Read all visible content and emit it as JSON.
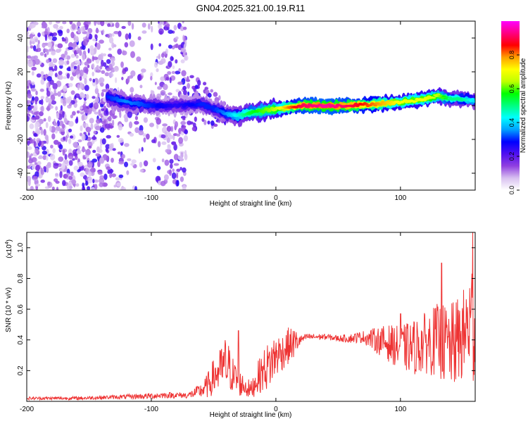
{
  "title": "GN04.2025.321.00.19.R11",
  "chart_data": [
    {
      "type": "heatmap",
      "xlabel": "Height of straight line (km)",
      "ylabel": "Frequency (Hz)",
      "xlim": [
        -200,
        160
      ],
      "ylim": [
        -50,
        50
      ],
      "xticks": [
        -200,
        -100,
        0,
        100
      ],
      "yticks": [
        -40,
        -20,
        0,
        20,
        40
      ],
      "xtick_labels": [
        "-200",
        "-100",
        "0",
        "100"
      ],
      "ytick_labels": [
        "-40",
        "-20",
        "0",
        "20",
        "40"
      ],
      "colorbar": {
        "label": "Normalized spectral amplitude",
        "range": [
          0,
          1
        ],
        "ticks": [
          0.0,
          0.2,
          0.4,
          0.6,
          0.8
        ],
        "tick_labels": [
          "0.0",
          "0.2",
          "0.4",
          "0.6",
          "0.8"
        ],
        "colors": [
          "#ffffff",
          "#d8c0f0",
          "#9040e0",
          "#5010f0",
          "#0000ff",
          "#00a0ff",
          "#00ffff",
          "#00ff80",
          "#00ff00",
          "#c0ff00",
          "#ffff00",
          "#ffa000",
          "#ff0000",
          "#ff0080",
          "#ff00ff"
        ]
      },
      "ridge": {
        "x": [
          -135,
          -120,
          -100,
          -80,
          -60,
          -50,
          -40,
          -30,
          -20,
          -10,
          0,
          10,
          20,
          40,
          60,
          80,
          100,
          120,
          130,
          140,
          150,
          160
        ],
        "freq": [
          5,
          2,
          0,
          0,
          1,
          -2,
          -5,
          -6,
          -4,
          -3,
          -2,
          -1,
          0,
          0,
          0,
          1,
          2,
          4,
          6,
          4,
          4,
          3
        ],
        "amp": [
          0.3,
          0.35,
          0.3,
          0.25,
          0.3,
          0.3,
          0.35,
          0.45,
          0.55,
          0.6,
          0.65,
          0.8,
          0.9,
          0.95,
          0.9,
          0.8,
          0.7,
          0.7,
          0.65,
          0.5,
          0.5,
          0.4
        ]
      }
    },
    {
      "type": "line",
      "xlabel": "Height of straight line (km)",
      "ylabel": "SNR (10 * v/v)",
      "exponent_label": "(x10",
      "exponent_power": "4",
      "exponent_close": ")",
      "xlim": [
        -200,
        160
      ],
      "ylim": [
        0,
        1.1
      ],
      "xticks": [
        -200,
        -100,
        0,
        100
      ],
      "yticks": [
        0.2,
        0.4,
        0.6,
        0.8,
        1.0
      ],
      "xtick_labels": [
        "-200",
        "-100",
        "0",
        "100"
      ],
      "ytick_labels": [
        "0.2",
        "0.4",
        "0.6",
        "0.8",
        "1.0"
      ],
      "series": [
        {
          "name": "SNR",
          "color": "#ee3333",
          "x": [
            -200,
            -180,
            -160,
            -140,
            -120,
            -100,
            -90,
            -80,
            -70,
            -60,
            -55,
            -50,
            -45,
            -40,
            -35,
            -30,
            -25,
            -20,
            -15,
            -10,
            -5,
            0,
            5,
            10,
            15,
            20,
            25,
            30,
            40,
            50,
            60,
            70,
            80,
            90,
            100,
            110,
            120,
            130,
            140,
            150,
            155,
            160
          ],
          "y": [
            0.02,
            0.02,
            0.02,
            0.025,
            0.03,
            0.035,
            0.04,
            0.04,
            0.04,
            0.07,
            0.1,
            0.16,
            0.2,
            0.24,
            0.18,
            0.12,
            0.1,
            0.07,
            0.15,
            0.2,
            0.24,
            0.3,
            0.32,
            0.36,
            0.38,
            0.4,
            0.42,
            0.42,
            0.42,
            0.41,
            0.41,
            0.42,
            0.4,
            0.38,
            0.35,
            0.35,
            0.38,
            0.4,
            0.35,
            0.42,
            0.5,
            0.55
          ],
          "noise_envelope": [
            0.01,
            0.01,
            0.012,
            0.012,
            0.015,
            0.02,
            0.02,
            0.02,
            0.02,
            0.05,
            0.08,
            0.12,
            0.14,
            0.2,
            0.12,
            0.09,
            0.07,
            0.06,
            0.1,
            0.14,
            0.16,
            0.15,
            0.12,
            0.12,
            0.1,
            0.03,
            0.02,
            0.02,
            0.02,
            0.02,
            0.03,
            0.04,
            0.08,
            0.12,
            0.14,
            0.18,
            0.2,
            0.24,
            0.28,
            0.3,
            0.35,
            0.5
          ],
          "peaks": [
            {
              "x": -30,
              "y": 0.46
            },
            {
              "x": 10,
              "y": 0.48
            },
            {
              "x": 100,
              "y": 0.57
            },
            {
              "x": 133,
              "y": 0.9
            },
            {
              "x": 158,
              "y": 1.1
            }
          ]
        }
      ]
    }
  ]
}
